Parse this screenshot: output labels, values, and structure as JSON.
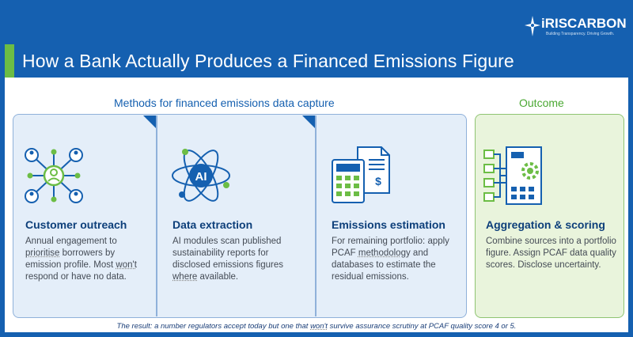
{
  "header": {
    "title": "How a Bank Actually Produces a Financed Emissions Figure",
    "logo_text": "iRISCARBON",
    "logo_tagline": "Building Transparency. Driving Growth."
  },
  "sections": {
    "methods_heading": "Methods for financed emissions data capture",
    "outcome_heading": "Outcome"
  },
  "cards": [
    {
      "icon": "network-people-icon",
      "title": "Customer outreach",
      "body_parts": [
        "Annual engagement to ",
        "prioritise",
        " borrowers by emission profile. Most ",
        "won't",
        " respond or have no data."
      ]
    },
    {
      "icon": "ai-atom-icon",
      "title": "Data extraction",
      "body_parts": [
        "AI modules scan published sustainability reports for disclosed emissions figures ",
        "where",
        " available."
      ]
    },
    {
      "icon": "calculator-document-icon",
      "title": "Emissions estimation",
      "body_parts": [
        "For remaining portfolio: apply PCAF ",
        "methodology",
        " and databases to estimate the residual emissions."
      ]
    },
    {
      "icon": "aggregation-gear-icon",
      "title": "Aggregation & scoring",
      "body_parts": [
        "Combine sources into a portfolio figure. Assign PCAF data quality scores. Disclose uncertainty."
      ]
    }
  ],
  "footer": {
    "parts": [
      "The result: a number regulators accept today but one that ",
      "won't",
      " survive assurance scrutiny at PCAF quality score 4 or 5."
    ]
  },
  "colors": {
    "brand_blue": "#1560b0",
    "brand_green": "#6cbd45",
    "dark_blue": "#0d3f7a",
    "methods_bg": "#e4eef9",
    "outcome_bg": "#e9f4dc"
  }
}
